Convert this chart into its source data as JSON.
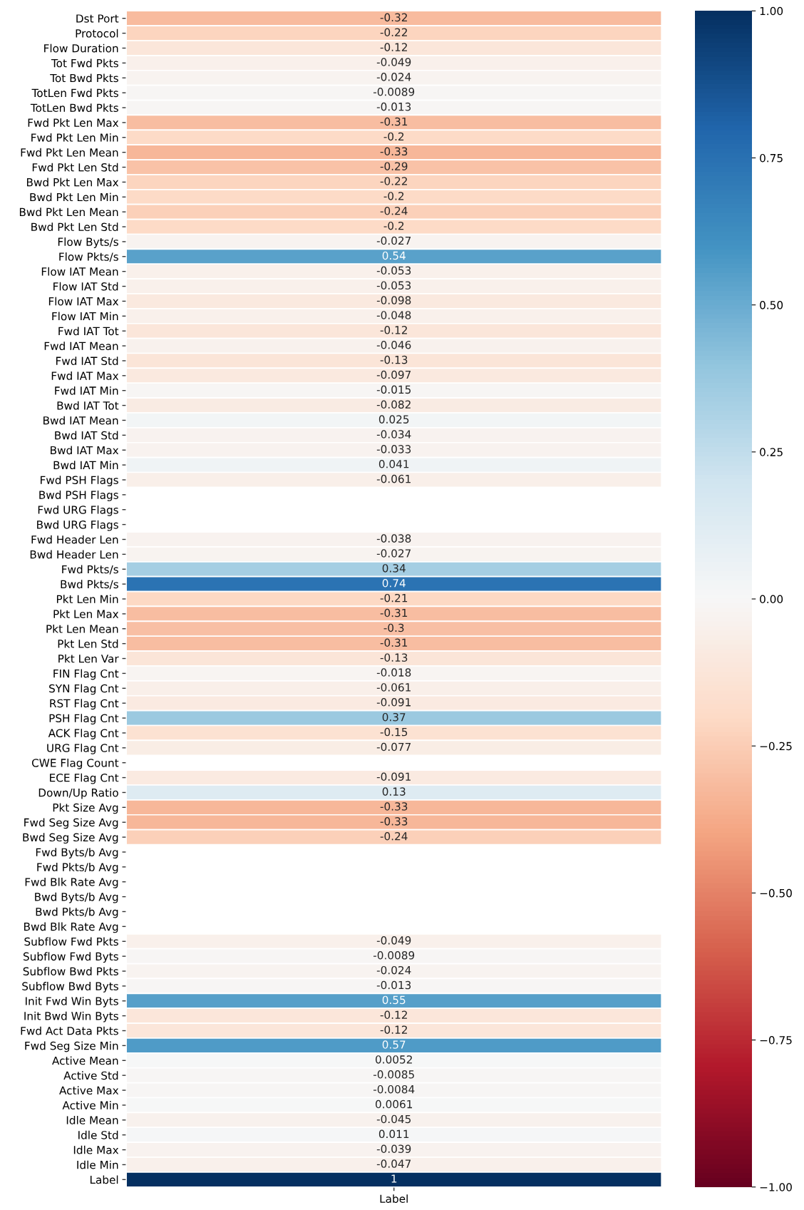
{
  "chart_data": {
    "type": "heatmap",
    "categories": [
      "Label"
    ],
    "y_categories": [
      "Dst Port",
      "Protocol",
      "Flow Duration",
      "Tot Fwd Pkts",
      "Tot Bwd Pkts",
      "TotLen Fwd Pkts",
      "TotLen Bwd Pkts",
      "Fwd Pkt Len Max",
      "Fwd Pkt Len Min",
      "Fwd Pkt Len Mean",
      "Fwd Pkt Len Std",
      "Bwd Pkt Len Max",
      "Bwd Pkt Len Min",
      "Bwd Pkt Len Mean",
      "Bwd Pkt Len Std",
      "Flow Byts/s",
      "Flow Pkts/s",
      "Flow IAT Mean",
      "Flow IAT Std",
      "Flow IAT Max",
      "Flow IAT Min",
      "Fwd IAT Tot",
      "Fwd IAT Mean",
      "Fwd IAT Std",
      "Fwd IAT Max",
      "Fwd IAT Min",
      "Bwd IAT Tot",
      "Bwd IAT Mean",
      "Bwd IAT Std",
      "Bwd IAT Max",
      "Bwd IAT Min",
      "Fwd PSH Flags",
      "Bwd PSH Flags",
      "Fwd URG Flags",
      "Bwd URG Flags",
      "Fwd Header Len",
      "Bwd Header Len",
      "Fwd Pkts/s",
      "Bwd Pkts/s",
      "Pkt Len Min",
      "Pkt Len Max",
      "Pkt Len Mean",
      "Pkt Len Std",
      "Pkt Len Var",
      "FIN Flag Cnt",
      "SYN Flag Cnt",
      "RST Flag Cnt",
      "PSH Flag Cnt",
      "ACK Flag Cnt",
      "URG Flag Cnt",
      "CWE Flag Count",
      "ECE Flag Cnt",
      "Down/Up Ratio",
      "Pkt Size Avg",
      "Fwd Seg Size Avg",
      "Bwd Seg Size Avg",
      "Fwd Byts/b Avg",
      "Fwd Pkts/b Avg",
      "Fwd Blk Rate Avg",
      "Bwd Byts/b Avg",
      "Bwd Pkts/b Avg",
      "Bwd Blk Rate Avg",
      "Subflow Fwd Pkts",
      "Subflow Fwd Byts",
      "Subflow Bwd Pkts",
      "Subflow Bwd Byts",
      "Init Fwd Win Byts",
      "Init Bwd Win Byts",
      "Fwd Act Data Pkts",
      "Fwd Seg Size Min",
      "Active Mean",
      "Active Std",
      "Active Max",
      "Active Min",
      "Idle Mean",
      "Idle Std",
      "Idle Max",
      "Idle Min",
      "Label"
    ],
    "cells": [
      [
        -0.32
      ],
      [
        -0.22
      ],
      [
        -0.12
      ],
      [
        -0.049
      ],
      [
        -0.024
      ],
      [
        -0.0089
      ],
      [
        -0.013
      ],
      [
        -0.31
      ],
      [
        -0.2
      ],
      [
        -0.33
      ],
      [
        -0.29
      ],
      [
        -0.22
      ],
      [
        -0.2
      ],
      [
        -0.24
      ],
      [
        -0.2
      ],
      [
        -0.027
      ],
      [
        0.54
      ],
      [
        -0.053
      ],
      [
        -0.053
      ],
      [
        -0.098
      ],
      [
        -0.048
      ],
      [
        -0.12
      ],
      [
        -0.046
      ],
      [
        -0.13
      ],
      [
        -0.097
      ],
      [
        -0.015
      ],
      [
        -0.082
      ],
      [
        0.025
      ],
      [
        -0.034
      ],
      [
        -0.033
      ],
      [
        0.041
      ],
      [
        -0.061
      ],
      [
        null
      ],
      [
        null
      ],
      [
        null
      ],
      [
        -0.038
      ],
      [
        -0.027
      ],
      [
        0.34
      ],
      [
        0.74
      ],
      [
        -0.21
      ],
      [
        -0.31
      ],
      [
        -0.3
      ],
      [
        -0.31
      ],
      [
        -0.13
      ],
      [
        -0.018
      ],
      [
        -0.061
      ],
      [
        -0.091
      ],
      [
        0.37
      ],
      [
        -0.15
      ],
      [
        -0.077
      ],
      [
        null
      ],
      [
        -0.091
      ],
      [
        0.13
      ],
      [
        -0.33
      ],
      [
        -0.33
      ],
      [
        -0.24
      ],
      [
        null
      ],
      [
        null
      ],
      [
        null
      ],
      [
        null
      ],
      [
        null
      ],
      [
        null
      ],
      [
        -0.049
      ],
      [
        -0.0089
      ],
      [
        -0.024
      ],
      [
        -0.013
      ],
      [
        0.55
      ],
      [
        -0.12
      ],
      [
        -0.12
      ],
      [
        0.57
      ],
      [
        0.0052
      ],
      [
        -0.0085
      ],
      [
        -0.0084
      ],
      [
        0.0061
      ],
      [
        -0.045
      ],
      [
        0.011
      ],
      [
        -0.039
      ],
      [
        -0.047
      ],
      [
        1
      ]
    ],
    "data_labels": true,
    "clim": [
      -1,
      1
    ],
    "cticks": [
      {
        "value": -1,
        "label": "−1.00"
      },
      {
        "value": -0.75,
        "label": "−0.75"
      },
      {
        "value": -0.5,
        "label": "−0.50"
      },
      {
        "value": -0.25,
        "label": "−0.25"
      },
      {
        "value": 0,
        "label": "0.00"
      },
      {
        "value": 0.25,
        "label": "0.25"
      },
      {
        "value": 0.5,
        "label": "0.50"
      },
      {
        "value": 0.75,
        "label": "0.75"
      },
      {
        "value": 1,
        "label": "1.00"
      }
    ]
  }
}
